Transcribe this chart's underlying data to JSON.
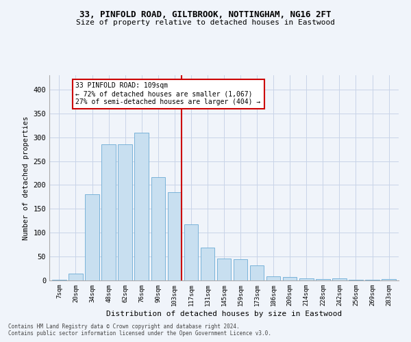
{
  "title1": "33, PINFOLD ROAD, GILTBROOK, NOTTINGHAM, NG16 2FT",
  "title2": "Size of property relative to detached houses in Eastwood",
  "xlabel": "Distribution of detached houses by size in Eastwood",
  "ylabel": "Number of detached properties",
  "footnote1": "Contains HM Land Registry data © Crown copyright and database right 2024.",
  "footnote2": "Contains public sector information licensed under the Open Government Licence v3.0.",
  "bar_labels": [
    "7sqm",
    "20sqm",
    "34sqm",
    "48sqm",
    "62sqm",
    "76sqm",
    "90sqm",
    "103sqm",
    "117sqm",
    "131sqm",
    "145sqm",
    "159sqm",
    "173sqm",
    "186sqm",
    "200sqm",
    "214sqm",
    "228sqm",
    "242sqm",
    "256sqm",
    "269sqm",
    "283sqm"
  ],
  "bar_values": [
    2,
    14,
    180,
    285,
    285,
    310,
    217,
    185,
    117,
    69,
    46,
    45,
    31,
    8,
    7,
    4,
    3,
    4,
    1,
    1,
    3
  ],
  "bar_color": "#c8dff0",
  "bar_edgecolor": "#6aaad4",
  "marker_bin_index": 7,
  "marker_color": "#cc0000",
  "annotation_title": "33 PINFOLD ROAD: 109sqm",
  "annotation_line1": "← 72% of detached houses are smaller (1,067)",
  "annotation_line2": "27% of semi-detached houses are larger (404) →",
  "annotation_box_color": "#cc0000",
  "ylim": [
    0,
    430
  ],
  "yticks": [
    0,
    50,
    100,
    150,
    200,
    250,
    300,
    350,
    400
  ],
  "background_color": "#f0f4fa",
  "grid_color": "#c8d4e8"
}
